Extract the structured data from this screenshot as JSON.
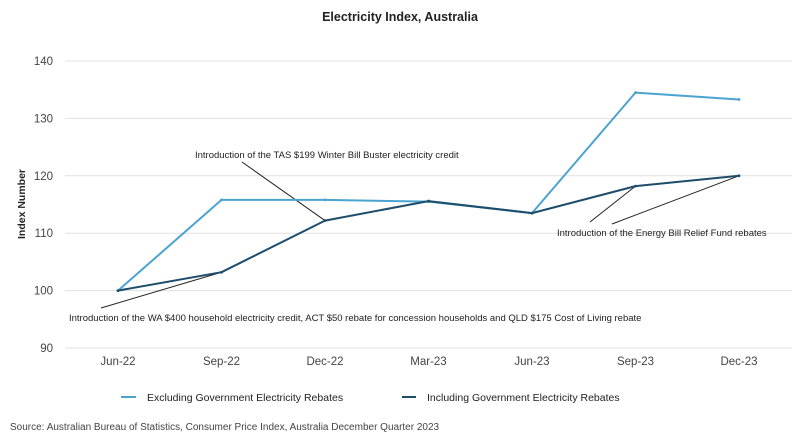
{
  "chart_data": {
    "type": "line",
    "title": "Electricity Index, Australia",
    "ylabel": "Index Number",
    "xlabel": "",
    "categories": [
      "Jun-22",
      "Sep-22",
      "Dec-22",
      "Mar-23",
      "Jun-23",
      "Sep-23",
      "Dec-23"
    ],
    "ylim": [
      90,
      140
    ],
    "yticks": [
      90,
      100,
      110,
      120,
      130,
      140
    ],
    "grid": true,
    "legend_position": "bottom",
    "series": [
      {
        "name": "Excluding Government Electricity Rebates",
        "color": "#4ba3cf",
        "values": [
          100,
          115.8,
          115.8,
          115.5,
          113.5,
          134.5,
          133.3
        ]
      },
      {
        "name": "Including Government Electricity Rebates",
        "color": "#1d4d6b",
        "values": [
          100,
          103.2,
          112.2,
          115.6,
          113.5,
          118.2,
          120.0
        ]
      }
    ],
    "annotations": [
      {
        "text": "Introduction of the TAS $199 Winter Bill Buster electricity credit"
      },
      {
        "text": "Introduction of the Energy Bill Relief Fund rebates"
      },
      {
        "text": "Introduction of the WA $400 household electricity credit, ACT $50 rebate for concession households and QLD $175 Cost of Living rebate"
      }
    ],
    "source": "Source: Australian Bureau of Statistics, Consumer Price Index, Australia December Quarter 2023"
  }
}
